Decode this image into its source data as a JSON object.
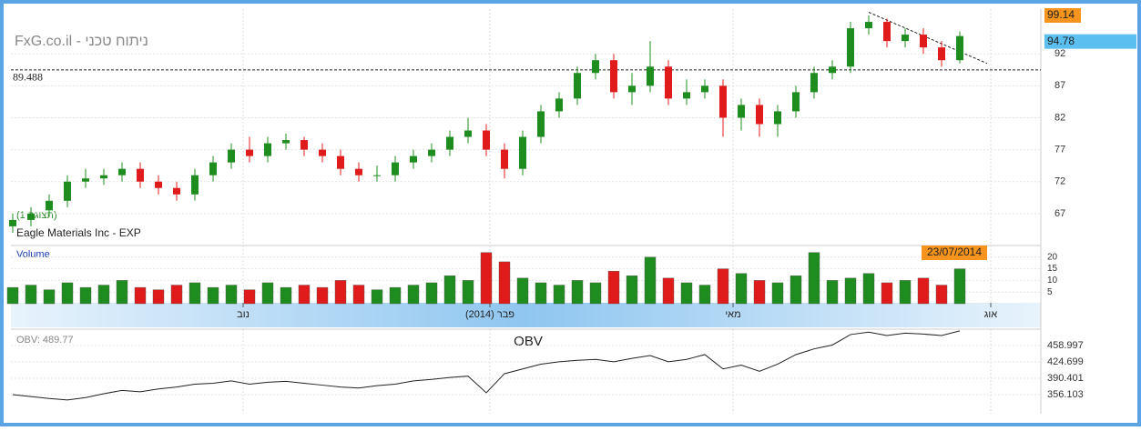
{
  "chart_data": [
    {
      "type": "candlestick",
      "title": "FxG.co.il - ניתוח טכני",
      "subtitle": "Eagle Materials Inc - EXP",
      "view_label": "(תצוגה 1)",
      "x": [
        0,
        1,
        2,
        3,
        4,
        5,
        6,
        7,
        8,
        9,
        10,
        11,
        12,
        13,
        14,
        15,
        16,
        17,
        18,
        19,
        20,
        21,
        22,
        23,
        24,
        25,
        26,
        27,
        28,
        29,
        30,
        31,
        32,
        33,
        34,
        35,
        36,
        37,
        38,
        39,
        40,
        41,
        42,
        43,
        44,
        45,
        46,
        47,
        48,
        49,
        50,
        51,
        52
      ],
      "open": [
        65,
        66,
        67.5,
        69,
        72,
        72.5,
        73,
        74,
        72,
        71,
        70,
        73,
        75,
        77,
        76,
        78,
        78.5,
        77,
        76,
        74,
        73,
        73,
        75,
        76,
        77,
        79,
        80,
        77,
        74,
        79,
        83,
        85,
        89,
        91,
        86,
        87,
        90,
        85,
        86,
        87,
        82,
        84,
        81,
        83,
        86,
        89,
        90,
        96,
        97,
        94,
        95,
        93,
        91
      ],
      "high": [
        67,
        68,
        70,
        73,
        74,
        74,
        75,
        75,
        73,
        72,
        74,
        76,
        78,
        79,
        79,
        79.5,
        79,
        78,
        77,
        75,
        74.5,
        76,
        77,
        78,
        80,
        82,
        81,
        78,
        80,
        84,
        86,
        90,
        92,
        92,
        89,
        94,
        91,
        88,
        88,
        88,
        85,
        85,
        84,
        87,
        90,
        91,
        97,
        98,
        97.5,
        96,
        96,
        94,
        95.5
      ],
      "low": [
        64,
        65,
        66.5,
        68,
        71,
        71.5,
        72,
        71,
        70,
        69,
        69,
        72,
        74,
        75,
        75,
        77,
        76,
        75,
        73,
        72,
        72,
        72,
        74,
        75,
        76,
        78,
        76,
        72.5,
        73,
        78,
        82,
        84,
        88,
        85,
        84,
        86,
        84,
        84,
        85,
        79,
        80,
        79,
        79,
        82,
        85,
        88,
        89,
        95,
        93,
        93,
        92,
        90,
        90.5
      ],
      "close": [
        66,
        67,
        69,
        72,
        72.5,
        73,
        74,
        72,
        71,
        70,
        73,
        75,
        77,
        76,
        78,
        78.5,
        77,
        76,
        74,
        73,
        73,
        75,
        76,
        77,
        79,
        80,
        77,
        74,
        79,
        83,
        85,
        89,
        91,
        86,
        87,
        90,
        85,
        86,
        87,
        82,
        84,
        81,
        83,
        86,
        89,
        90,
        96,
        97,
        94,
        95,
        93,
        91,
        94.78
      ],
      "up_color": "#1e8c1e",
      "down_color": "#e01b1b",
      "xlim": [
        0,
        56
      ],
      "ylim": [
        62,
        99
      ],
      "yticks": [
        67,
        72,
        77,
        82,
        87,
        92
      ],
      "level": 89.488,
      "high_label": 99.14,
      "last_label": 94.78,
      "trendline": {
        "x": [
          47,
          53.5
        ],
        "y": [
          98.5,
          90.5
        ]
      }
    },
    {
      "type": "bar",
      "title": "Volume",
      "date_label": "23/07/2014",
      "values": [
        7,
        8,
        6,
        9,
        7,
        8,
        10,
        7,
        6,
        8,
        9,
        7,
        8,
        6,
        9,
        7,
        8,
        7,
        10,
        8,
        6,
        7,
        8,
        9,
        12,
        10,
        22,
        18,
        11,
        9,
        8,
        10,
        9,
        14,
        12,
        20,
        11,
        9,
        8,
        15,
        13,
        10,
        9,
        12,
        22,
        10,
        11,
        13,
        9,
        10,
        11,
        8,
        15
      ],
      "ylim": [
        0,
        25
      ],
      "yticks": [
        5,
        10,
        15,
        20
      ],
      "xticks": [
        {
          "value": 12.65,
          "label": "נוב"
        },
        {
          "value": 26.2,
          "label": "פבר (2014)"
        },
        {
          "value": 39.55,
          "label": "מאי"
        },
        {
          "value": 53.7,
          "label": "אוג"
        }
      ]
    },
    {
      "type": "line",
      "title": "OBV",
      "last_label": "OBV: 489.77",
      "color": "#222222",
      "values": [
        356,
        352,
        348,
        345,
        350,
        358,
        365,
        362,
        368,
        372,
        378,
        380,
        385,
        378,
        382,
        384,
        380,
        376,
        372,
        370,
        375,
        378,
        385,
        388,
        392,
        395,
        360,
        400,
        410,
        420,
        425,
        428,
        430,
        425,
        432,
        438,
        425,
        430,
        440,
        410,
        418,
        405,
        420,
        440,
        452,
        460,
        482,
        487,
        480,
        485,
        483,
        480,
        489.77
      ],
      "ylim": [
        316.1,
        493.3
      ],
      "yticks": [
        356.103,
        390.401,
        424.699,
        458.997
      ]
    }
  ]
}
